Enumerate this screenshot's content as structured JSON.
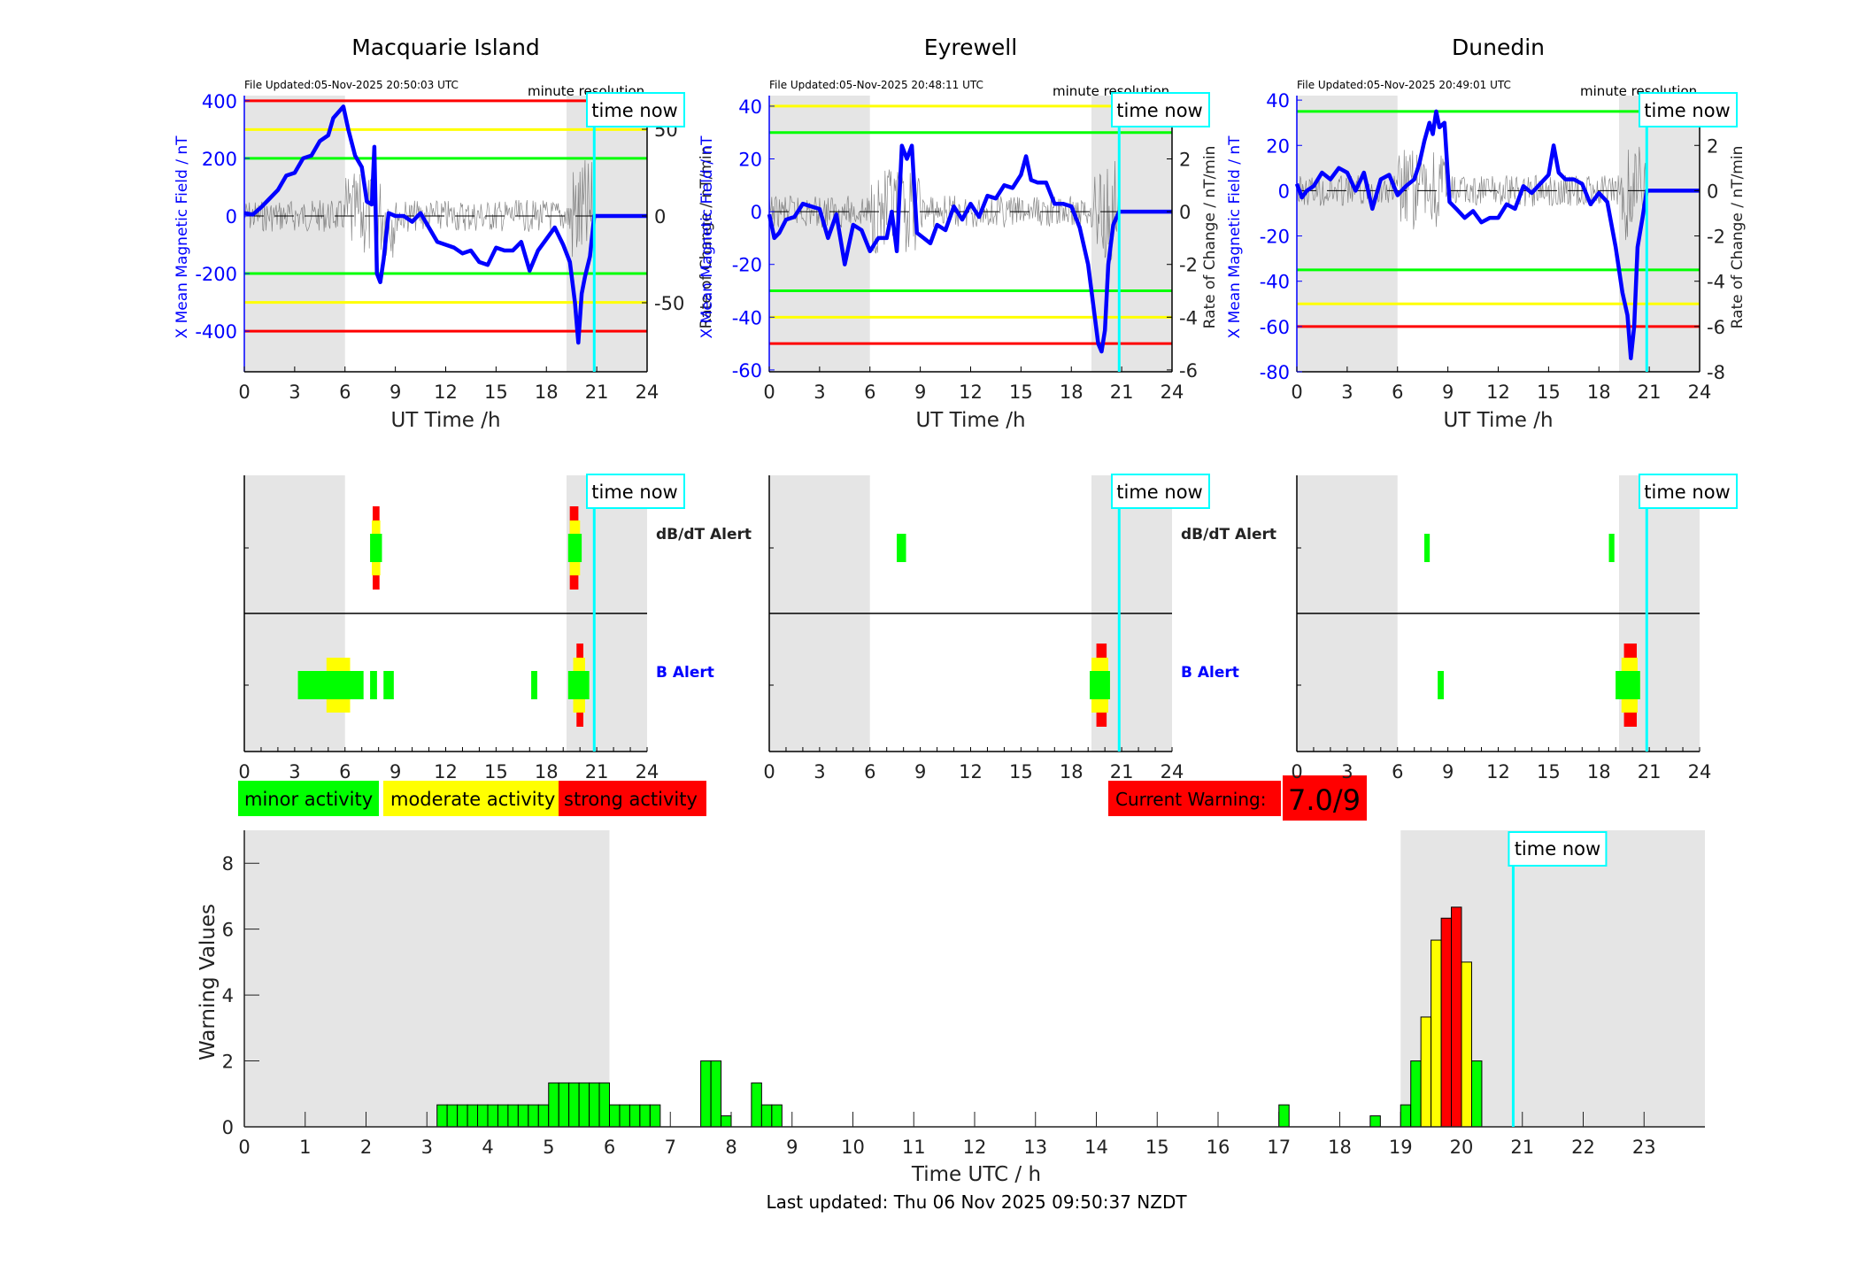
{
  "colors": {
    "green": "#00ff00",
    "yellow": "#ffff00",
    "red": "#ff0000",
    "blue": "#0000ff",
    "cyan": "#00ffff",
    "shade": "#e5e5e5",
    "noise": "#555555"
  },
  "labels": {
    "time_now": "time now",
    "minute_resolution": "minute resolution",
    "ut_time_xlabel": "UT Time /h",
    "left_ylabel": "X Mean Magnetic Field / nT",
    "right_ylabel": "Rate of Change / nT/min",
    "dbdt_alert": "dB/dT Alert",
    "b_alert": "B Alert"
  },
  "legend": {
    "minor": "minor activity",
    "moderate": "moderate activity",
    "strong": "strong activity"
  },
  "current_warning": {
    "label": "Current Warning:",
    "value": "7.0/9"
  },
  "footer": {
    "last_updated": "Last updated: Thu 06 Nov 2025 09:50:37 NZDT"
  },
  "chart_data": [
    {
      "type": "line",
      "title": "Macquarie Island",
      "file_updated": "File Updated:05-Nov-2025 20:50:03 UTC",
      "xlabel": "UT Time /h",
      "xlim": [
        0,
        24
      ],
      "xticks": [
        0,
        3,
        6,
        9,
        12,
        15,
        18,
        21,
        24
      ],
      "ylim": [
        -541,
        418
      ],
      "yticks": [
        400,
        200,
        0,
        -200,
        -400
      ],
      "y2lim": [
        -89.8,
        69.4
      ],
      "y2ticks": [
        50,
        0,
        -50
      ],
      "thresholds": [
        {
          "value": 400,
          "color": "red"
        },
        {
          "value": 300,
          "color": "yellow"
        },
        {
          "value": 200,
          "color": "green"
        },
        {
          "value": -200,
          "color": "green"
        },
        {
          "value": -300,
          "color": "yellow"
        },
        {
          "value": -400,
          "color": "red"
        }
      ],
      "shaded": [
        [
          0,
          6
        ],
        [
          19.2,
          24
        ]
      ],
      "time_now": 20.85,
      "series_x": [
        0,
        0.5,
        1,
        1.5,
        2,
        2.5,
        3,
        3.5,
        4,
        4.5,
        5,
        5.3,
        5.6,
        5.9,
        6.2,
        6.6,
        7,
        7.3,
        7.6,
        7.75,
        7.9,
        8.1,
        8.3,
        8.6,
        9,
        9.5,
        10,
        10.5,
        11,
        11.5,
        12,
        12.5,
        13,
        13.5,
        14,
        14.5,
        15,
        15.5,
        16,
        16.5,
        17,
        17.5,
        18,
        18.5,
        19,
        19.4,
        19.7,
        19.9,
        20.1,
        20.3,
        20.6,
        20.85,
        21,
        24
      ],
      "series_y": [
        10,
        5,
        30,
        60,
        90,
        140,
        150,
        200,
        210,
        260,
        280,
        340,
        360,
        380,
        300,
        210,
        170,
        50,
        40,
        240,
        -200,
        -230,
        -150,
        10,
        0,
        0,
        -20,
        10,
        -40,
        -90,
        -100,
        -110,
        -130,
        -120,
        -160,
        -170,
        -110,
        -120,
        -120,
        -90,
        -190,
        -120,
        -80,
        -40,
        -100,
        -160,
        -300,
        -440,
        -270,
        -210,
        -140,
        0,
        0,
        0
      ]
    },
    {
      "type": "line",
      "title": "Eyrewell",
      "file_updated": "File Updated:05-Nov-2025 20:48:11 UTC",
      "xlabel": "UT Time /h",
      "xlim": [
        0,
        24
      ],
      "xticks": [
        0,
        3,
        6,
        9,
        12,
        15,
        18,
        21,
        24
      ],
      "ylim": [
        -60.7,
        44
      ],
      "yticks": [
        40,
        20,
        0,
        -20,
        -40,
        -60
      ],
      "y2lim": [
        -6.07,
        4.4
      ],
      "y2ticks": [
        4,
        2,
        0,
        -2,
        -4,
        -6
      ],
      "thresholds": [
        {
          "value": 40,
          "color": "yellow"
        },
        {
          "value": 30,
          "color": "green"
        },
        {
          "value": -30,
          "color": "green"
        },
        {
          "value": -40,
          "color": "yellow"
        },
        {
          "value": -50,
          "color": "red"
        }
      ],
      "shaded": [
        [
          0,
          6
        ],
        [
          19.2,
          24
        ]
      ],
      "time_now": 20.85,
      "series_x": [
        0,
        0.3,
        0.6,
        1,
        1.5,
        2,
        2.5,
        3,
        3.5,
        4,
        4.5,
        5,
        5.5,
        6,
        6.5,
        7,
        7.3,
        7.6,
        7.9,
        8.2,
        8.5,
        8.8,
        9.2,
        9.6,
        10,
        10.5,
        11,
        11.5,
        12,
        12.5,
        13,
        13.5,
        14,
        14.5,
        15,
        15.3,
        15.6,
        16,
        16.5,
        17,
        17.5,
        18,
        18.5,
        19,
        19.3,
        19.6,
        19.8,
        20,
        20.2,
        20.5,
        20.85,
        21,
        24
      ],
      "series_y": [
        -1,
        -10,
        -8,
        -3,
        -2,
        3,
        2,
        1,
        -10,
        -1,
        -20,
        -5,
        -7,
        -15,
        -10,
        -10,
        0,
        -15,
        25,
        20,
        25,
        -8,
        -10,
        -12,
        -5,
        -7,
        2,
        -3,
        3,
        -2,
        6,
        5,
        10,
        9,
        14,
        21,
        12,
        11,
        11,
        3,
        3,
        2,
        -6,
        -20,
        -35,
        -50,
        -53,
        -45,
        -20,
        -5,
        0,
        0,
        0
      ]
    },
    {
      "type": "line",
      "title": "Dunedin",
      "file_updated": "File Updated:05-Nov-2025 20:49:01 UTC",
      "xlabel": "UT Time /h",
      "xlim": [
        0,
        24
      ],
      "xticks": [
        0,
        3,
        6,
        9,
        12,
        15,
        18,
        21,
        24
      ],
      "ylim": [
        -80,
        42
      ],
      "yticks": [
        40,
        20,
        0,
        -20,
        -40,
        -60,
        -80
      ],
      "y2lim": [
        -8,
        4.2
      ],
      "y2ticks": [
        4,
        2,
        0,
        -2,
        -4,
        -6,
        -8
      ],
      "thresholds": [
        {
          "value": 35,
          "color": "green"
        },
        {
          "value": -35,
          "color": "green"
        },
        {
          "value": -50,
          "color": "yellow"
        },
        {
          "value": -60,
          "color": "red"
        }
      ],
      "shaded": [
        [
          0,
          6
        ],
        [
          19.2,
          24
        ]
      ],
      "time_now": 20.85,
      "series_x": [
        0,
        0.3,
        0.6,
        1,
        1.5,
        2,
        2.5,
        3,
        3.5,
        4,
        4.5,
        5,
        5.5,
        6,
        6.5,
        7,
        7.3,
        7.6,
        7.9,
        8.1,
        8.3,
        8.5,
        8.8,
        9.1,
        9.5,
        10,
        10.5,
        11,
        11.5,
        12,
        12.5,
        13,
        13.5,
        14,
        14.5,
        15,
        15.3,
        15.6,
        16,
        16.5,
        17,
        17.5,
        18,
        18.5,
        19,
        19.4,
        19.7,
        19.9,
        20.1,
        20.3,
        20.6,
        20.85,
        21,
        24
      ],
      "series_y": [
        3,
        -3,
        0,
        2,
        8,
        5,
        10,
        8,
        0,
        8,
        -8,
        5,
        7,
        -2,
        2,
        5,
        12,
        22,
        30,
        25,
        35,
        28,
        30,
        -5,
        -8,
        -12,
        -9,
        -14,
        -12,
        -12,
        -6,
        -8,
        2,
        -1,
        3,
        7,
        20,
        8,
        5,
        5,
        3,
        -6,
        -1,
        -5,
        -25,
        -45,
        -55,
        -74,
        -60,
        -25,
        -12,
        0,
        0,
        0
      ]
    },
    {
      "type": "alert_timeline",
      "title": "Macquarie Island",
      "xlim": [
        0,
        24
      ],
      "xticks": [
        0,
        3,
        6,
        9,
        12,
        15,
        18,
        21,
        24
      ],
      "shaded": [
        [
          0,
          6
        ],
        [
          19.2,
          24
        ]
      ],
      "time_now": 20.85,
      "dbdt": [
        {
          "start": 7.5,
          "end": 8.2,
          "level": 1
        },
        {
          "start": 7.6,
          "end": 8.1,
          "level": 2
        },
        {
          "start": 7.65,
          "end": 8.05,
          "level": 3
        },
        {
          "start": 19.3,
          "end": 20.1,
          "level": 1
        },
        {
          "start": 19.4,
          "end": 20.0,
          "level": 2
        },
        {
          "start": 19.4,
          "end": 19.9,
          "level": 3
        }
      ],
      "b": [
        {
          "start": 3.2,
          "end": 7.1,
          "level": 1
        },
        {
          "start": 4.9,
          "end": 6.3,
          "level": 2
        },
        {
          "start": 7.5,
          "end": 7.9,
          "level": 1
        },
        {
          "start": 8.3,
          "end": 8.9,
          "level": 1
        },
        {
          "start": 17.1,
          "end": 17.45,
          "level": 1
        },
        {
          "start": 19.3,
          "end": 20.55,
          "level": 1
        },
        {
          "start": 19.6,
          "end": 20.3,
          "level": 2
        },
        {
          "start": 19.8,
          "end": 20.2,
          "level": 3
        }
      ]
    },
    {
      "type": "alert_timeline",
      "title": "Eyrewell",
      "xlim": [
        0,
        24
      ],
      "xticks": [
        0,
        3,
        6,
        9,
        12,
        15,
        18,
        21,
        24
      ],
      "shaded": [
        [
          0,
          6
        ],
        [
          19.2,
          24
        ]
      ],
      "time_now": 20.85,
      "dbdt": [
        {
          "start": 7.6,
          "end": 8.15,
          "level": 1
        }
      ],
      "b": [
        {
          "start": 19.1,
          "end": 20.3,
          "level": 1
        },
        {
          "start": 19.2,
          "end": 20.2,
          "level": 2
        },
        {
          "start": 19.5,
          "end": 20.1,
          "level": 3
        }
      ]
    },
    {
      "type": "alert_timeline",
      "title": "Dunedin",
      "xlim": [
        0,
        24
      ],
      "xticks": [
        0,
        3,
        6,
        9,
        12,
        15,
        18,
        21,
        24
      ],
      "shaded": [
        [
          0,
          6
        ],
        [
          19.2,
          24
        ]
      ],
      "time_now": 20.85,
      "dbdt": [
        {
          "start": 7.6,
          "end": 7.9,
          "level": 1
        },
        {
          "start": 18.6,
          "end": 18.9,
          "level": 1
        }
      ],
      "b": [
        {
          "start": 8.4,
          "end": 8.75,
          "level": 1
        },
        {
          "start": 19.0,
          "end": 20.45,
          "level": 1
        },
        {
          "start": 19.35,
          "end": 20.3,
          "level": 2
        },
        {
          "start": 19.5,
          "end": 20.25,
          "level": 3
        }
      ]
    },
    {
      "type": "bar",
      "title": "",
      "xlabel": "Time UTC / h",
      "ylabel": "Warning Values",
      "xlim": [
        0,
        24
      ],
      "xticks": [
        0,
        1,
        2,
        3,
        4,
        5,
        6,
        7,
        8,
        9,
        10,
        11,
        12,
        13,
        14,
        15,
        16,
        17,
        18,
        19,
        20,
        21,
        22,
        23
      ],
      "ylim": [
        0,
        9
      ],
      "yticks": [
        0,
        2,
        4,
        6,
        8
      ],
      "bar_width_h": 0.1667,
      "shaded": [
        [
          0,
          6
        ],
        [
          19,
          24
        ]
      ],
      "time_now": 20.85,
      "bars": [
        {
          "x": 3.167,
          "v": 0.667,
          "level": 1
        },
        {
          "x": 3.333,
          "v": 0.667,
          "level": 1
        },
        {
          "x": 3.5,
          "v": 0.667,
          "level": 1
        },
        {
          "x": 3.667,
          "v": 0.667,
          "level": 1
        },
        {
          "x": 3.833,
          "v": 0.667,
          "level": 1
        },
        {
          "x": 4.0,
          "v": 0.667,
          "level": 1
        },
        {
          "x": 4.167,
          "v": 0.667,
          "level": 1
        },
        {
          "x": 4.333,
          "v": 0.667,
          "level": 1
        },
        {
          "x": 4.5,
          "v": 0.667,
          "level": 1
        },
        {
          "x": 4.667,
          "v": 0.667,
          "level": 1
        },
        {
          "x": 4.833,
          "v": 0.667,
          "level": 1
        },
        {
          "x": 5.0,
          "v": 1.333,
          "level": 1
        },
        {
          "x": 5.167,
          "v": 1.333,
          "level": 1
        },
        {
          "x": 5.333,
          "v": 1.333,
          "level": 1
        },
        {
          "x": 5.5,
          "v": 1.333,
          "level": 1
        },
        {
          "x": 5.667,
          "v": 1.333,
          "level": 1
        },
        {
          "x": 5.833,
          "v": 1.333,
          "level": 1
        },
        {
          "x": 6.0,
          "v": 0.667,
          "level": 1
        },
        {
          "x": 6.167,
          "v": 0.667,
          "level": 1
        },
        {
          "x": 6.333,
          "v": 0.667,
          "level": 1
        },
        {
          "x": 6.5,
          "v": 0.667,
          "level": 1
        },
        {
          "x": 6.667,
          "v": 0.667,
          "level": 1
        },
        {
          "x": 7.5,
          "v": 2.0,
          "level": 1
        },
        {
          "x": 7.667,
          "v": 2.0,
          "level": 1
        },
        {
          "x": 7.833,
          "v": 0.333,
          "level": 1
        },
        {
          "x": 8.333,
          "v": 1.333,
          "level": 1
        },
        {
          "x": 8.5,
          "v": 0.667,
          "level": 1
        },
        {
          "x": 8.667,
          "v": 0.667,
          "level": 1
        },
        {
          "x": 17.0,
          "v": 0.667,
          "level": 1
        },
        {
          "x": 18.5,
          "v": 0.333,
          "level": 1
        },
        {
          "x": 19.0,
          "v": 0.667,
          "level": 1
        },
        {
          "x": 19.167,
          "v": 2.0,
          "level": 1
        },
        {
          "x": 19.333,
          "v": 3.333,
          "level": 2
        },
        {
          "x": 19.5,
          "v": 5.667,
          "level": 2
        },
        {
          "x": 19.667,
          "v": 6.333,
          "level": 3
        },
        {
          "x": 19.833,
          "v": 6.667,
          "level": 3
        },
        {
          "x": 20.0,
          "v": 5.0,
          "level": 2
        },
        {
          "x": 20.167,
          "v": 2.0,
          "level": 1
        }
      ]
    }
  ]
}
